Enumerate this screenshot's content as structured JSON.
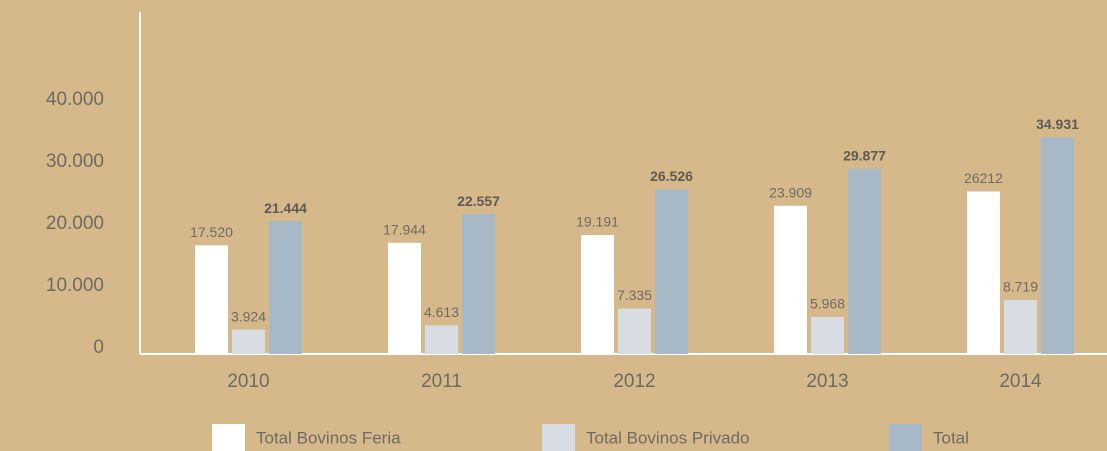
{
  "chart_data": {
    "type": "bar",
    "categories": [
      "2010",
      "2011",
      "2012",
      "2013",
      "2014"
    ],
    "series": [
      {
        "name": "Total Bovinos Feria",
        "color": "#ffffff",
        "values": [
          17520,
          17944,
          19191,
          23909,
          26212
        ],
        "value_labels": [
          "17.520",
          "17.944",
          "19.191",
          "23.909",
          "26212"
        ]
      },
      {
        "name": "Total Bovinos Privado",
        "color": "#d8dde3",
        "values": [
          3924,
          4613,
          7335,
          5968,
          8719
        ],
        "value_labels": [
          "3.924",
          "4.613",
          "7.335",
          "5.968",
          "8.719"
        ]
      },
      {
        "name": "Total",
        "color": "#a7b8c6",
        "values": [
          21444,
          22557,
          26526,
          29877,
          34931
        ],
        "value_labels": [
          "21.444",
          "22.557",
          "26.526",
          "29.877",
          "34.931"
        ]
      }
    ],
    "ylim": [
      0,
      50000
    ],
    "yticks": [
      0,
      {
        "value": 10000,
        "label": "10.000"
      },
      {
        "value": 20000,
        "label": "20.000"
      },
      {
        "value": 30000,
        "label": "30.000"
      },
      {
        "value": 40000,
        "label": "40.000"
      }
    ],
    "grid": false,
    "legend": "bottom"
  }
}
